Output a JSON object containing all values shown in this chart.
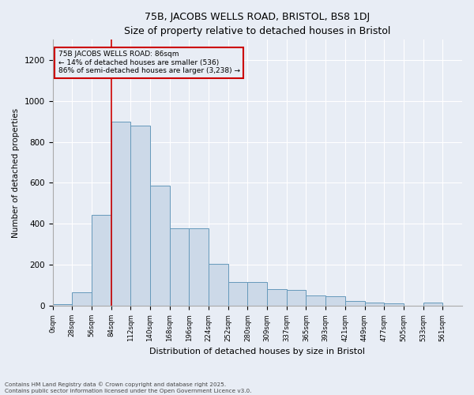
{
  "title": "75B, JACOBS WELLS ROAD, BRISTOL, BS8 1DJ",
  "subtitle": "Size of property relative to detached houses in Bristol",
  "xlabel": "Distribution of detached houses by size in Bristol",
  "ylabel": "Number of detached properties",
  "bar_color": "#ccd9e8",
  "bar_edge_color": "#6699bb",
  "background_color": "#e8edf5",
  "grid_color": "white",
  "annotation_box_color": "#cc0000",
  "vline_color": "#cc0000",
  "annotation_text": "75B JACOBS WELLS ROAD: 86sqm\n← 14% of detached houses are smaller (536)\n86% of semi-detached houses are larger (3,238) →",
  "bins": [
    "0sqm",
    "28sqm",
    "56sqm",
    "84sqm",
    "112sqm",
    "140sqm",
    "168sqm",
    "196sqm",
    "224sqm",
    "252sqm",
    "280sqm",
    "309sqm",
    "337sqm",
    "365sqm",
    "393sqm",
    "421sqm",
    "449sqm",
    "477sqm",
    "505sqm",
    "533sqm",
    "561sqm"
  ],
  "values": [
    8,
    65,
    445,
    900,
    880,
    585,
    380,
    378,
    205,
    115,
    115,
    80,
    78,
    50,
    48,
    22,
    15,
    12,
    2,
    15,
    2
  ],
  "vline_x_index": 3,
  "ylim": [
    0,
    1300
  ],
  "yticks": [
    0,
    200,
    400,
    600,
    800,
    1000,
    1200
  ],
  "footer": "Contains HM Land Registry data © Crown copyright and database right 2025.\nContains public sector information licensed under the Open Government Licence v3.0.",
  "figsize": [
    6.0,
    5.0
  ],
  "dpi": 100
}
